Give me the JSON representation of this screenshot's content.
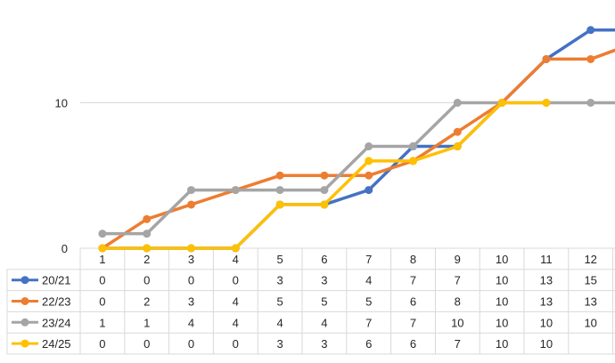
{
  "chart_data": {
    "type": "line",
    "title": "",
    "xlabel": "",
    "ylabel": "",
    "categories": [
      "1",
      "2",
      "3",
      "4",
      "5",
      "6",
      "7",
      "8",
      "9",
      "10",
      "11",
      "12"
    ],
    "y_ticks": [
      0,
      10
    ],
    "ylim": [
      0,
      16
    ],
    "grid": "horizontal major gridlines",
    "legend": "data table below chart with legend keys",
    "series": [
      {
        "name": "20/21",
        "color": "#4472C4",
        "values": [
          0,
          0,
          0,
          0,
          3,
          3,
          4,
          7,
          7,
          10,
          13,
          15
        ]
      },
      {
        "name": "22/23",
        "color": "#ED7D31",
        "values": [
          0,
          2,
          3,
          4,
          5,
          5,
          5,
          6,
          8,
          10,
          13,
          13
        ]
      },
      {
        "name": "23/24",
        "color": "#A5A5A5",
        "values": [
          1,
          1,
          4,
          4,
          4,
          4,
          7,
          7,
          10,
          10,
          10,
          10
        ]
      },
      {
        "name": "24/25",
        "color": "#FFC000",
        "values": [
          0,
          0,
          0,
          0,
          3,
          3,
          6,
          6,
          7,
          10,
          10,
          null
        ]
      }
    ]
  }
}
